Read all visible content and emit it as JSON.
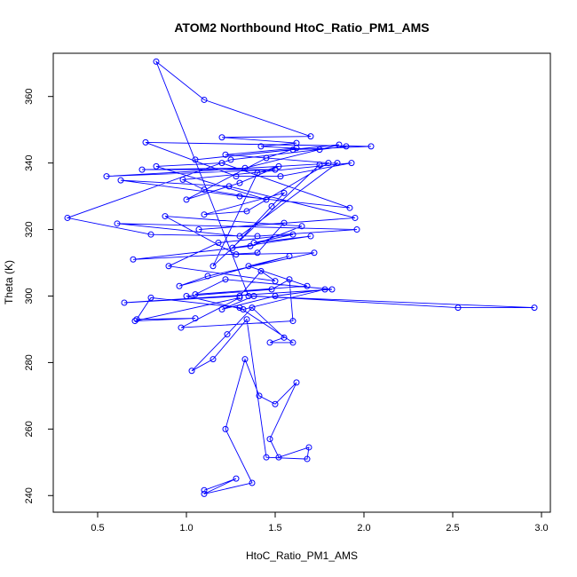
{
  "chart_data": {
    "type": "line",
    "title": "ATOM2 Northbound HtoC_Ratio_PM1_AMS",
    "xlabel": "HtoC_Ratio_PM1_AMS",
    "ylabel": "Theta (K)",
    "xlim": [
      0.25,
      3.05
    ],
    "ylim": [
      235,
      373
    ],
    "x_ticks": [
      0.5,
      1.0,
      1.5,
      2.0,
      2.5,
      3.0
    ],
    "x_tick_labels": [
      "0.5",
      "1.0",
      "1.5",
      "2.0",
      "2.5",
      "3.0"
    ],
    "y_ticks": [
      240,
      260,
      280,
      300,
      320,
      340,
      360
    ],
    "y_tick_labels": [
      "240",
      "260",
      "280",
      "300",
      "320",
      "340",
      "360"
    ],
    "grid": false,
    "marker": "open-circle",
    "color": "#0000ff",
    "series": [
      {
        "x": [
          1.1,
          1.28,
          1.1,
          1.37,
          1.22,
          1.33,
          1.41,
          1.5,
          1.62,
          1.47,
          1.52,
          1.69,
          1.68,
          1.45,
          1.34,
          1.15,
          1.03,
          1.23,
          1.37,
          1.55,
          1.47,
          1.6,
          1.3,
          0.8,
          0.72,
          1.05,
          0.71,
          1.3,
          0.97,
          1.6,
          1.58,
          1.48,
          1.0,
          1.32,
          1.78,
          1.5,
          1.2,
          1.38,
          2.53,
          2.96,
          1.35,
          0.83,
          1.1,
          1.7,
          1.2,
          1.62,
          1.42,
          1.75,
          1.9,
          1.25,
          0.33,
          0.8,
          1.4,
          1.96,
          0.61,
          1.3,
          1.85,
          0.55,
          1.5,
          0.75,
          1.33,
          1.86,
          1.05,
          1.6,
          2.04,
          0.77,
          1.28,
          1.53,
          1.93,
          0.98,
          1.1,
          1.45,
          0.83,
          1.2,
          1.92,
          1.3,
          0.63,
          1.24,
          1.95,
          1.07,
          1.55,
          1.4,
          0.7,
          1.36,
          1.65,
          0.88,
          1.28,
          1.72,
          1.12,
          0.96,
          1.58,
          1.35,
          1.68,
          1.05,
          1.22,
          1.82,
          0.65,
          1.3,
          1.42,
          1.5,
          0.9,
          1.18,
          1.6,
          1.38,
          1.7,
          1.26,
          1.48,
          1.55,
          1.1,
          1.34,
          1.8,
          1.22,
          1.62,
          1.45,
          1.0,
          1.3,
          1.52,
          1.4,
          1.15,
          1.75
        ],
        "y": [
          241.6,
          245.1,
          240.5,
          243.8,
          260.0,
          281.0,
          270.0,
          267.5,
          274.0,
          257.0,
          251.5,
          254.5,
          251.0,
          251.5,
          293.0,
          281.0,
          277.5,
          288.5,
          296.5,
          287.5,
          286.0,
          286.0,
          296.5,
          299.5,
          293.0,
          293.3,
          292.5,
          299.5,
          290.5,
          292.5,
          305.0,
          302.0,
          300.0,
          296.0,
          302.0,
          300.0,
          296.0,
          300.0,
          296.5,
          296.5,
          300.0,
          370.5,
          359.0,
          348.0,
          347.7,
          346.0,
          345.0,
          344.0,
          345.0,
          341.0,
          323.5,
          318.5,
          318.0,
          320.0,
          321.8,
          318.0,
          340.0,
          336.0,
          338.0,
          338.0,
          338.5,
          345.5,
          341.0,
          344.0,
          345.0,
          346.2,
          336.0,
          336.0,
          340.0,
          335.0,
          332.0,
          329.0,
          339.0,
          340.0,
          326.5,
          330.0,
          334.8,
          333.0,
          323.5,
          320.0,
          322.0,
          313.0,
          311.0,
          315.0,
          321.0,
          324.0,
          312.5,
          313.0,
          306.0,
          303.0,
          312.0,
          309.0,
          303.0,
          300.5,
          305.0,
          302.0,
          298.0,
          300.0,
          307.5,
          304.5,
          309.0,
          316.0,
          318.5,
          316.0,
          318.0,
          314.5,
          327.0,
          331.0,
          324.5,
          325.5,
          340.0,
          342.5,
          344.5,
          341.5,
          329.0,
          334.0,
          339.0,
          337.0,
          309.0,
          339.5
        ]
      }
    ]
  }
}
